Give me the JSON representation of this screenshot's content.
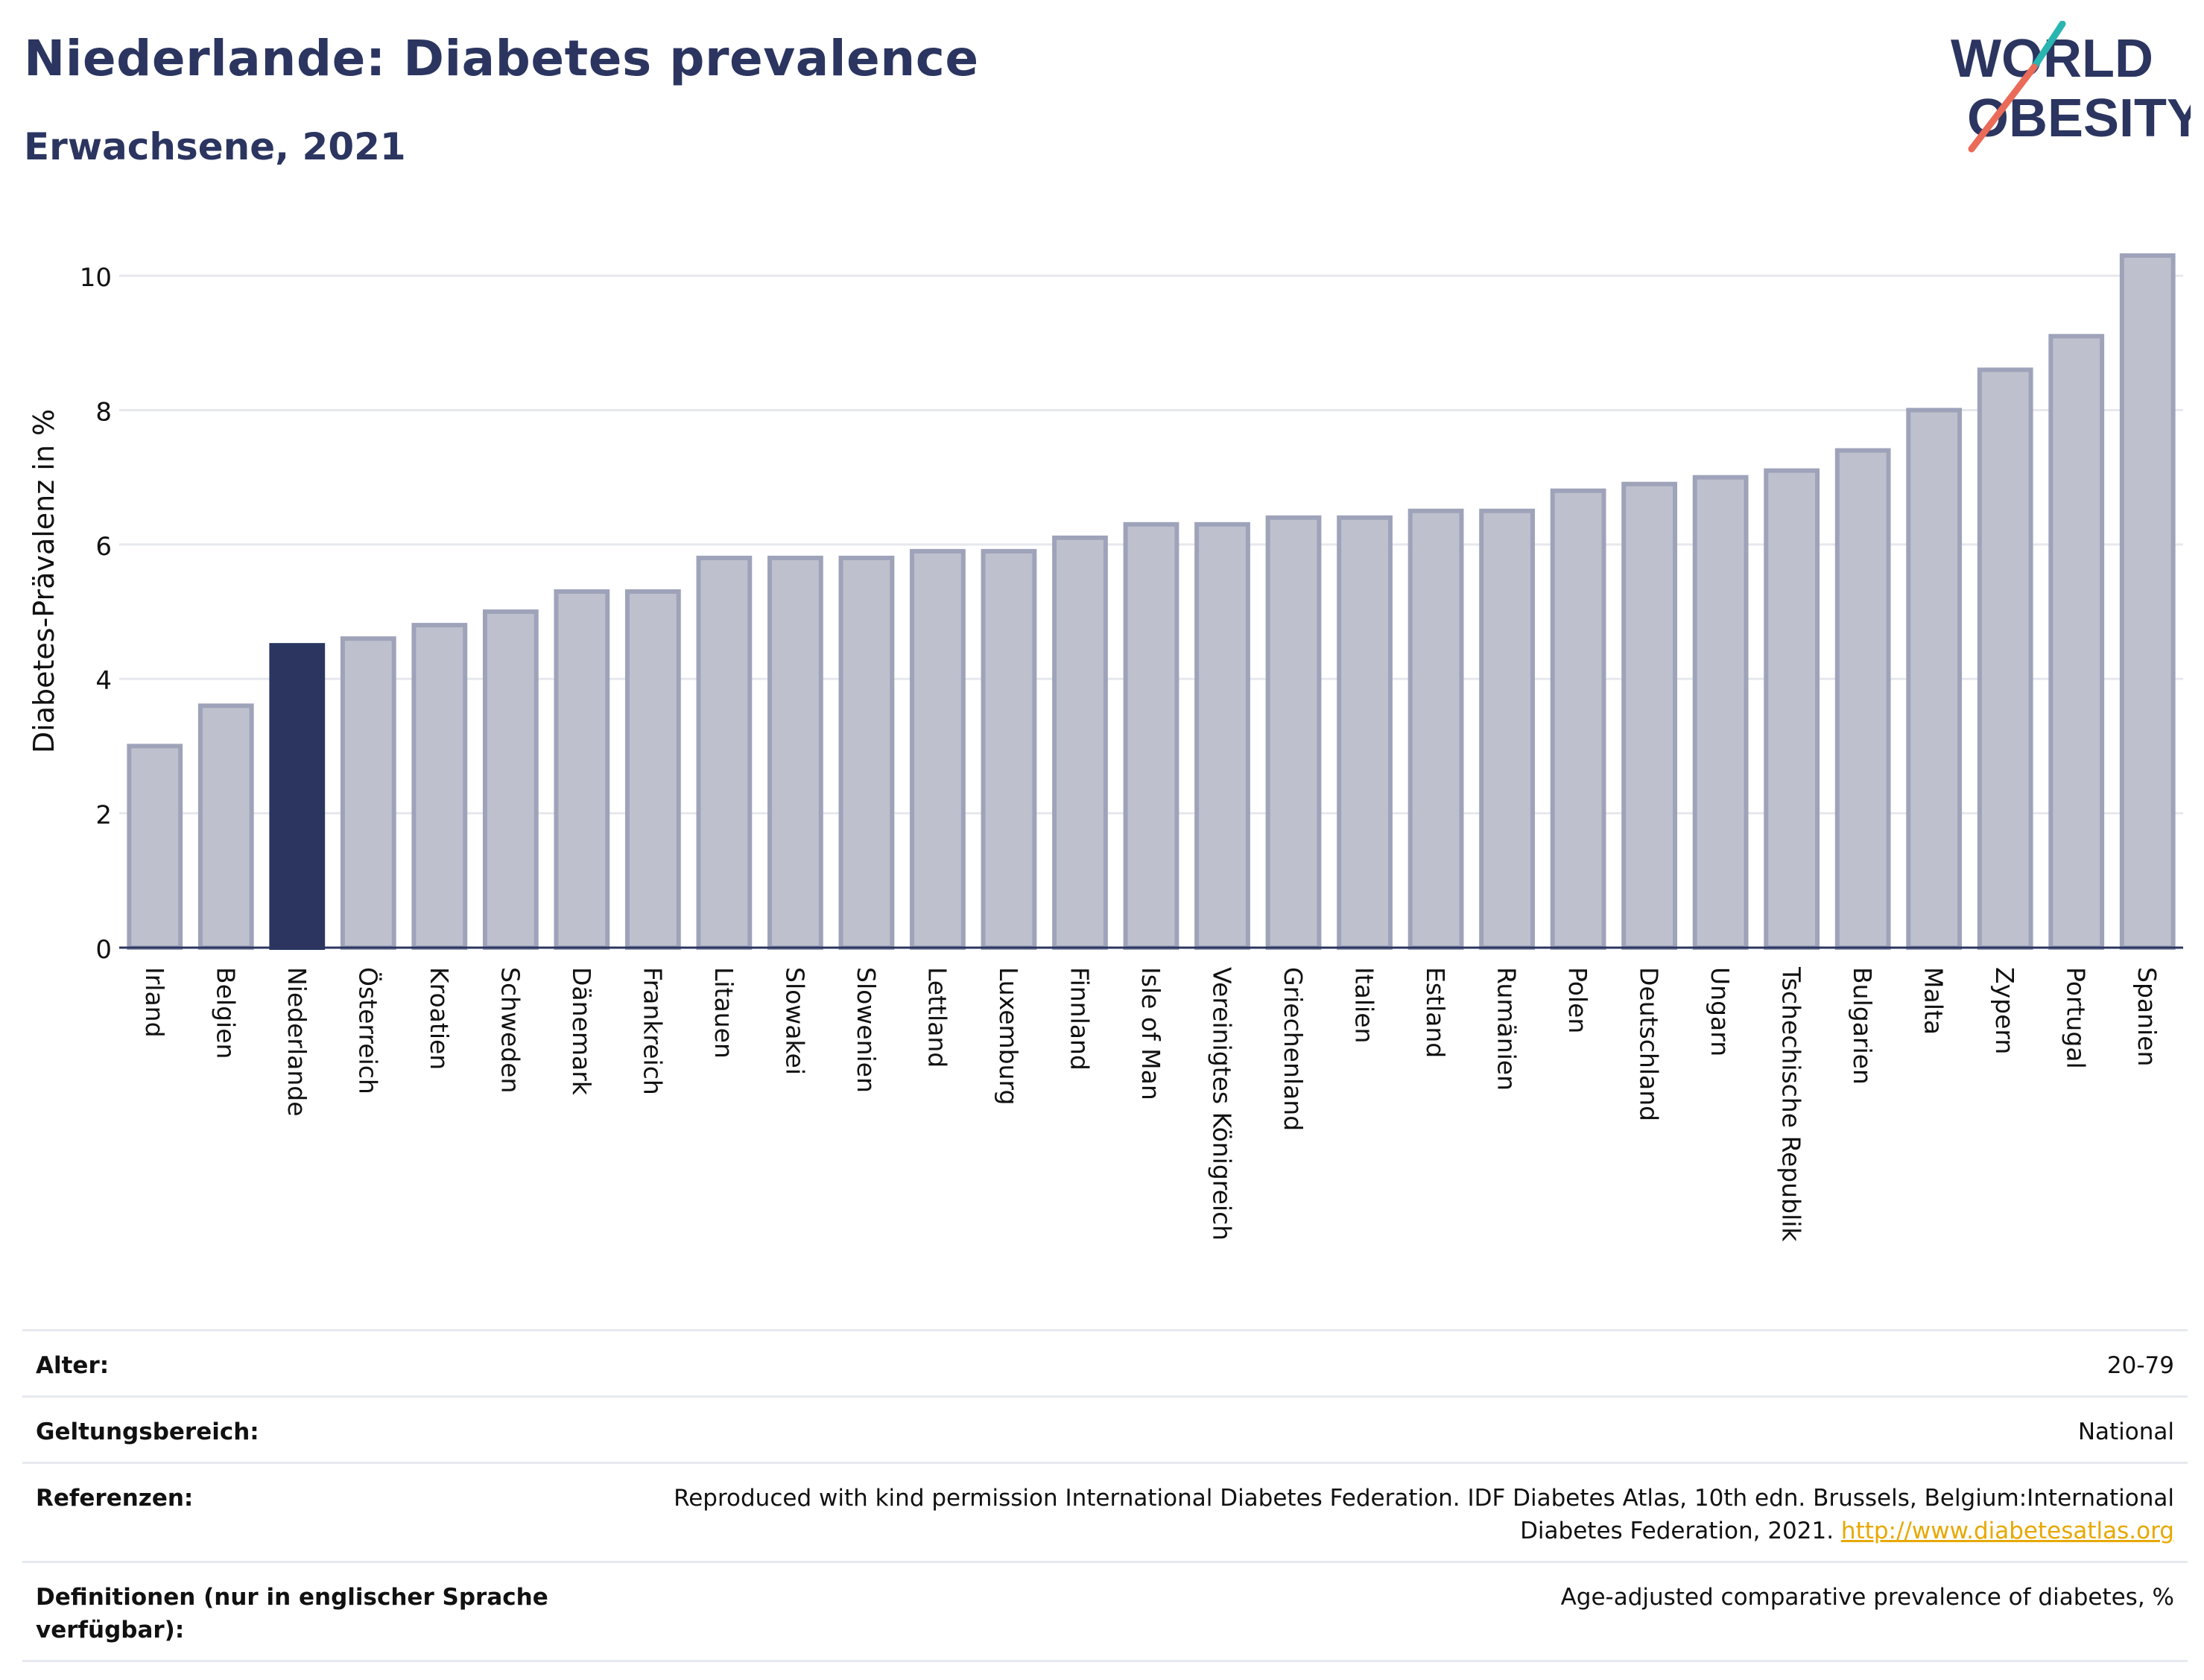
{
  "title": "Niederlande: Diabetes prevalence",
  "subtitle": "Erwachsene, 2021",
  "logo": {
    "line1": "WORLD",
    "line2": "OBESITY"
  },
  "colors": {
    "highlight": "#2b3560",
    "bar": "#bec1cd",
    "bar_edge": "#9ea3ba",
    "title": "#2b3560",
    "logo_teal": "#2bb5b0",
    "logo_red": "#e96b58"
  },
  "chart_data": {
    "type": "bar",
    "ylabel": "Diabetes-Prävalenz in %",
    "ylim": [
      0,
      10.5
    ],
    "yticks": [
      0,
      2,
      4,
      6,
      8,
      10
    ],
    "grid": true,
    "highlight": "Niederlande",
    "categories": [
      "Irland",
      "Belgien",
      "Niederlande",
      "Österreich",
      "Kroatien",
      "Schweden",
      "Dänemark",
      "Frankreich",
      "Litauen",
      "Slowakei",
      "Slowenien",
      "Lettland",
      "Luxemburg",
      "Finnland",
      "Isle of Man",
      "Vereinigtes Königreich",
      "Griechenland",
      "Italien",
      "Estland",
      "Rumänien",
      "Polen",
      "Deutschland",
      "Ungarn",
      "Tschechische Republik",
      "Bulgarien",
      "Malta",
      "Zypern",
      "Portugal",
      "Spanien"
    ],
    "values": [
      3.0,
      3.6,
      4.5,
      4.6,
      4.8,
      5.0,
      5.3,
      5.3,
      5.8,
      5.8,
      5.8,
      5.9,
      5.9,
      6.1,
      6.3,
      6.3,
      6.4,
      6.4,
      6.5,
      6.5,
      6.8,
      6.9,
      7.0,
      7.1,
      7.4,
      8.0,
      8.6,
      9.1,
      10.3
    ]
  },
  "footer": {
    "rows": [
      {
        "key": "Alter:",
        "value": "20-79"
      },
      {
        "key": "Geltungsbereich:",
        "value": "National"
      },
      {
        "key": "Referenzen:",
        "value": "Reproduced with kind permission International Diabetes Federation.  IDF Diabetes Atlas, 10th edn. Brussels, Belgium:International Diabetes Federation, 2021.",
        "link": "http://www.diabetesatlas.org"
      },
      {
        "key": "Definitionen (nur in englischer Sprache verfügbar):",
        "value": "Age-adjusted comparative prevalence of diabetes, %"
      }
    ]
  }
}
